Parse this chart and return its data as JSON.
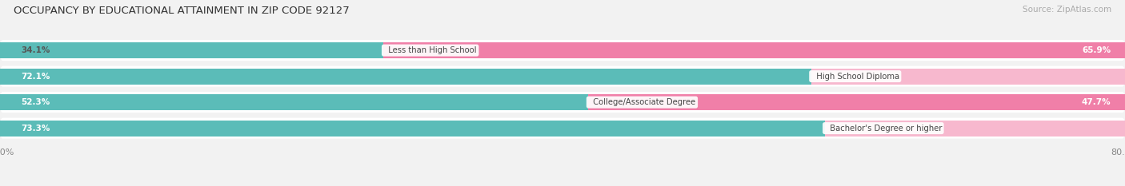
{
  "title": "OCCUPANCY BY EDUCATIONAL ATTAINMENT IN ZIP CODE 92127",
  "source": "Source: ZipAtlas.com",
  "categories": [
    "Less than High School",
    "High School Diploma",
    "College/Associate Degree",
    "Bachelor's Degree or higher"
  ],
  "owner_pct": [
    34.1,
    72.1,
    52.3,
    73.3
  ],
  "renter_pct": [
    65.9,
    28.0,
    47.7,
    26.7
  ],
  "owner_color": "#5bbcb8",
  "renter_color": "#f07fa8",
  "renter_color_light": "#f7b8ce",
  "bg_color": "#f2f2f2",
  "bar_row_color": "#ffffff",
  "label_color_dark": "#555555",
  "xlim_left": -80.0,
  "xlim_right": 80.0
}
